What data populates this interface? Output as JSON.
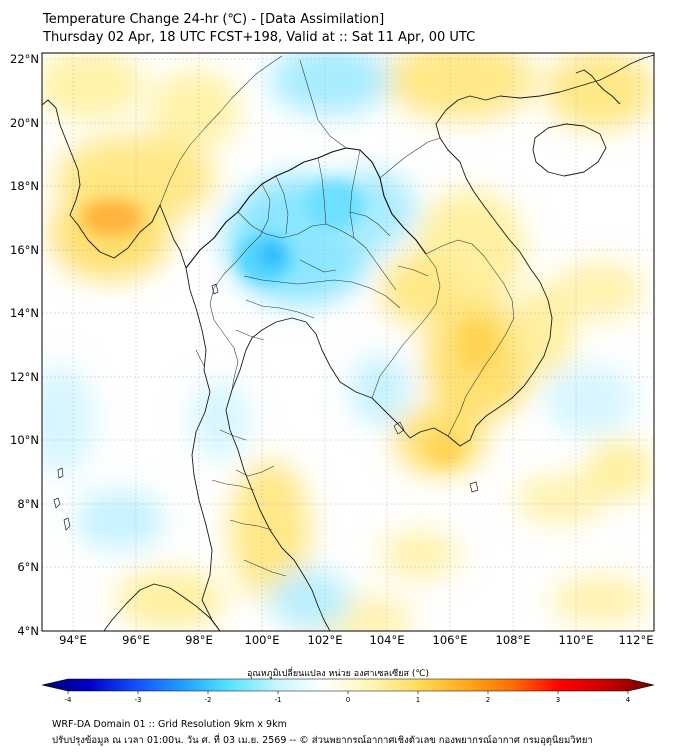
{
  "title": {
    "line1": "Temperature Change 24-hr (℃) - [Data Assimilation]",
    "line2": "Thursday 02 Apr, 18 UTC FCST+198, Valid at :: Sat 11 Apr, 00 UTC"
  },
  "map": {
    "lon_range": [
      93,
      112.5
    ],
    "lat_range": [
      4,
      22.2
    ],
    "lat_ticks": [
      "22°N",
      "20°N",
      "18°N",
      "16°N",
      "14°N",
      "12°N",
      "10°N",
      "8°N",
      "6°N",
      "4°N"
    ],
    "lon_ticks": [
      "94°E",
      "96°E",
      "98°E",
      "100°E",
      "102°E",
      "104°E",
      "106°E",
      "108°E",
      "110°E",
      "112°E"
    ]
  },
  "colorbar": {
    "label": "อุณหภูมิเปลี่ยนแปลง หน่วย องศาเซลเซียส (℃)",
    "ticks": [
      "-4",
      "-3",
      "-2",
      "-1",
      "0",
      "1",
      "2",
      "3",
      "4"
    ],
    "colors": [
      "#00006e",
      "#0000c8",
      "#1450ff",
      "#1ea0ff",
      "#55e6ff",
      "#c8f5ff",
      "#ffffff",
      "#fff5b4",
      "#ffdc5a",
      "#ffaa1e",
      "#ff6e00",
      "#ff0000",
      "#c80000",
      "#6e0000"
    ]
  },
  "footer": {
    "line1": "WRF-DA Domain 01 :: Grid Resolution 9km x 9km",
    "line2": "ปรับปรุงข้อมูล ณ เวลา 01:00น. วัน ศ. ที่ 03 เม.ย. 2569 -- © ส่วนพยากรณ์อากาศเชิงตัวเลข กองพยากรณ์อากาศ กรมอุตุนิยมวิทยา"
  }
}
